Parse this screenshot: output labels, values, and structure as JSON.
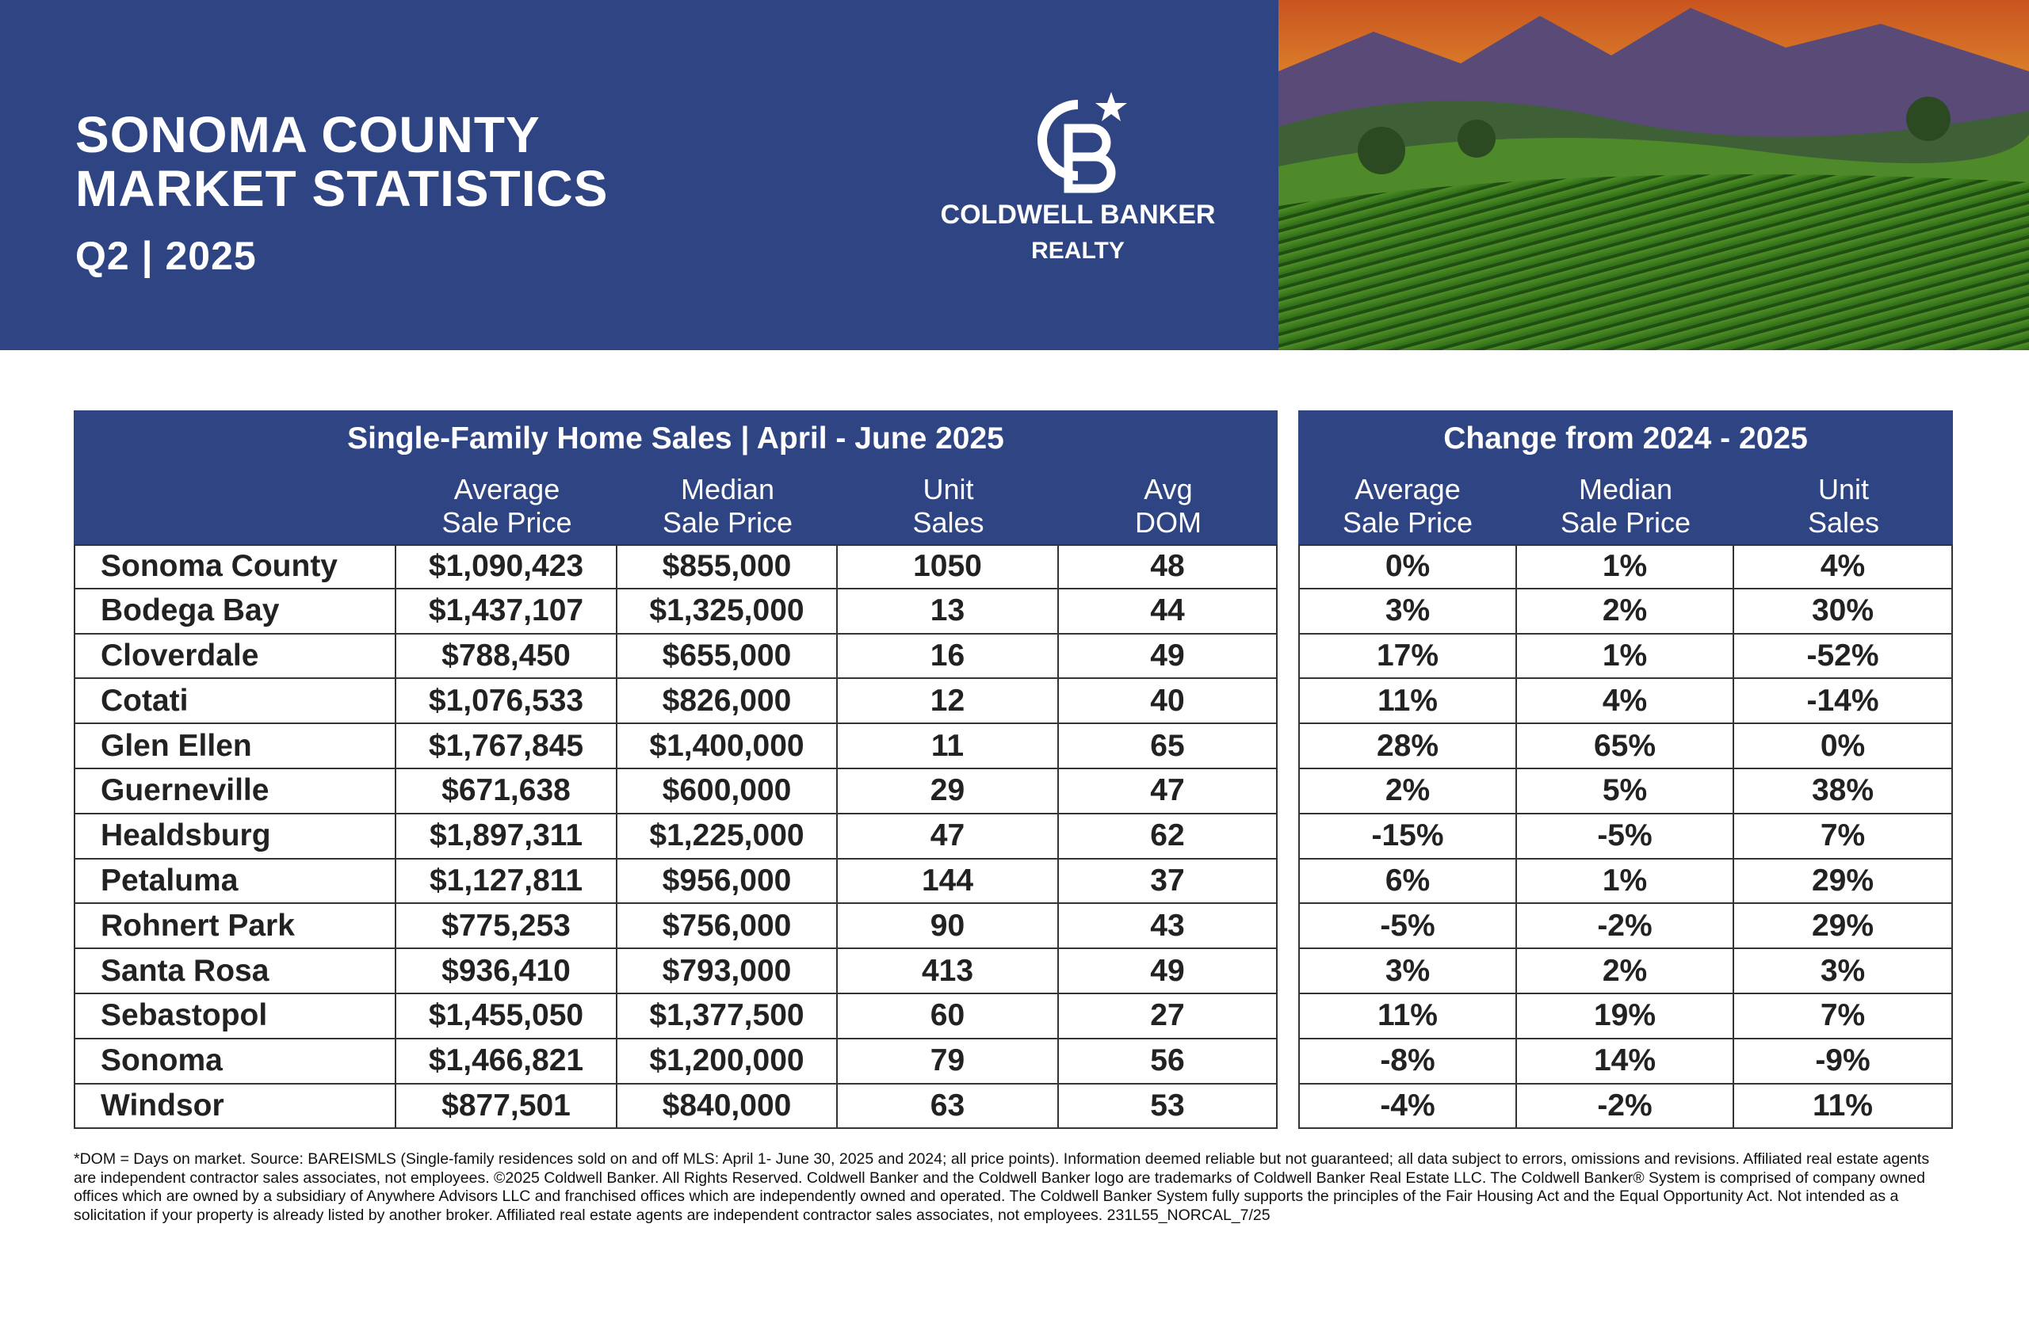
{
  "header": {
    "title_lines": [
      "SONOMA COUNTY",
      "MARKET STATISTICS"
    ],
    "period": "Q2 | 2025",
    "brand": "COLDWELL BANKER",
    "brand_sub": "REALTY"
  },
  "sales_table": {
    "title": "Single-Family Home Sales | April - June 2025",
    "columns": [
      [
        "Average",
        "Sale Price"
      ],
      [
        "Median",
        "Sale Price"
      ],
      [
        "Unit",
        "Sales"
      ],
      [
        "Avg",
        "DOM"
      ]
    ],
    "rows": [
      [
        "Sonoma County",
        "$1,090,423",
        "$855,000",
        "1050",
        "48"
      ],
      [
        "Bodega Bay",
        "$1,437,107",
        "$1,325,000",
        "13",
        "44"
      ],
      [
        "Cloverdale",
        "$788,450",
        "$655,000",
        "16",
        "49"
      ],
      [
        "Cotati",
        "$1,076,533",
        "$826,000",
        "12",
        "40"
      ],
      [
        "Glen Ellen",
        "$1,767,845",
        "$1,400,000",
        "11",
        "65"
      ],
      [
        "Guerneville",
        "$671,638",
        "$600,000",
        "29",
        "47"
      ],
      [
        "Healdsburg",
        "$1,897,311",
        "$1,225,000",
        "47",
        "62"
      ],
      [
        "Petaluma",
        "$1,127,811",
        "$956,000",
        "144",
        "37"
      ],
      [
        "Rohnert Park",
        "$775,253",
        "$756,000",
        "90",
        "43"
      ],
      [
        "Santa Rosa",
        "$936,410",
        "$793,000",
        "413",
        "49"
      ],
      [
        "Sebastopol",
        "$1,455,050",
        "$1,377,500",
        "60",
        "27"
      ],
      [
        "Sonoma",
        "$1,466,821",
        "$1,200,000",
        "79",
        "56"
      ],
      [
        "Windsor",
        "$877,501",
        "$840,000",
        "63",
        "53"
      ]
    ]
  },
  "change_table": {
    "title": "Change from 2024 - 2025",
    "columns": [
      [
        "Average",
        "Sale Price"
      ],
      [
        "Median",
        "Sale Price"
      ],
      [
        "Unit",
        "Sales"
      ]
    ],
    "rows": [
      [
        "0%",
        "1%",
        "4%"
      ],
      [
        "3%",
        "2%",
        "30%"
      ],
      [
        "17%",
        "1%",
        "-52%"
      ],
      [
        "11%",
        "4%",
        "-14%"
      ],
      [
        "28%",
        "65%",
        "0%"
      ],
      [
        "2%",
        "5%",
        "38%"
      ],
      [
        "-15%",
        "-5%",
        "7%"
      ],
      [
        "6%",
        "1%",
        "29%"
      ],
      [
        "-5%",
        "-2%",
        "29%"
      ],
      [
        "3%",
        "2%",
        "3%"
      ],
      [
        "11%",
        "19%",
        "7%"
      ],
      [
        "-8%",
        "14%",
        "-9%"
      ],
      [
        "-4%",
        "-2%",
        "11%"
      ]
    ]
  },
  "footnote": "*DOM = Days on market. Source: BAREISMLS (Single-family residences sold on and off MLS: April 1- June 30, 2025 and 2024; all price points). Information deemed reliable but not guaranteed; all data subject to errors, omissions and revisions. Affiliated real estate agents are independent contractor sales associates, not employees. ©2025 Coldwell Banker. All Rights Reserved. Coldwell Banker and the Coldwell Banker logo are trademarks of Coldwell Banker Real Estate LLC. The Coldwell Banker® System is comprised of company owned offices which are owned by a subsidiary of Anywhere Advisors LLC and franchised offices which are independently owned and operated. The Coldwell Banker System fully supports the principles of the Fair Housing Act and the Equal Opportunity Act. Not intended as a solicitation if your property is already listed by another broker. Affiliated real estate agents are independent contractor sales associates, not employees. 231L55_NORCAL_7/25"
}
